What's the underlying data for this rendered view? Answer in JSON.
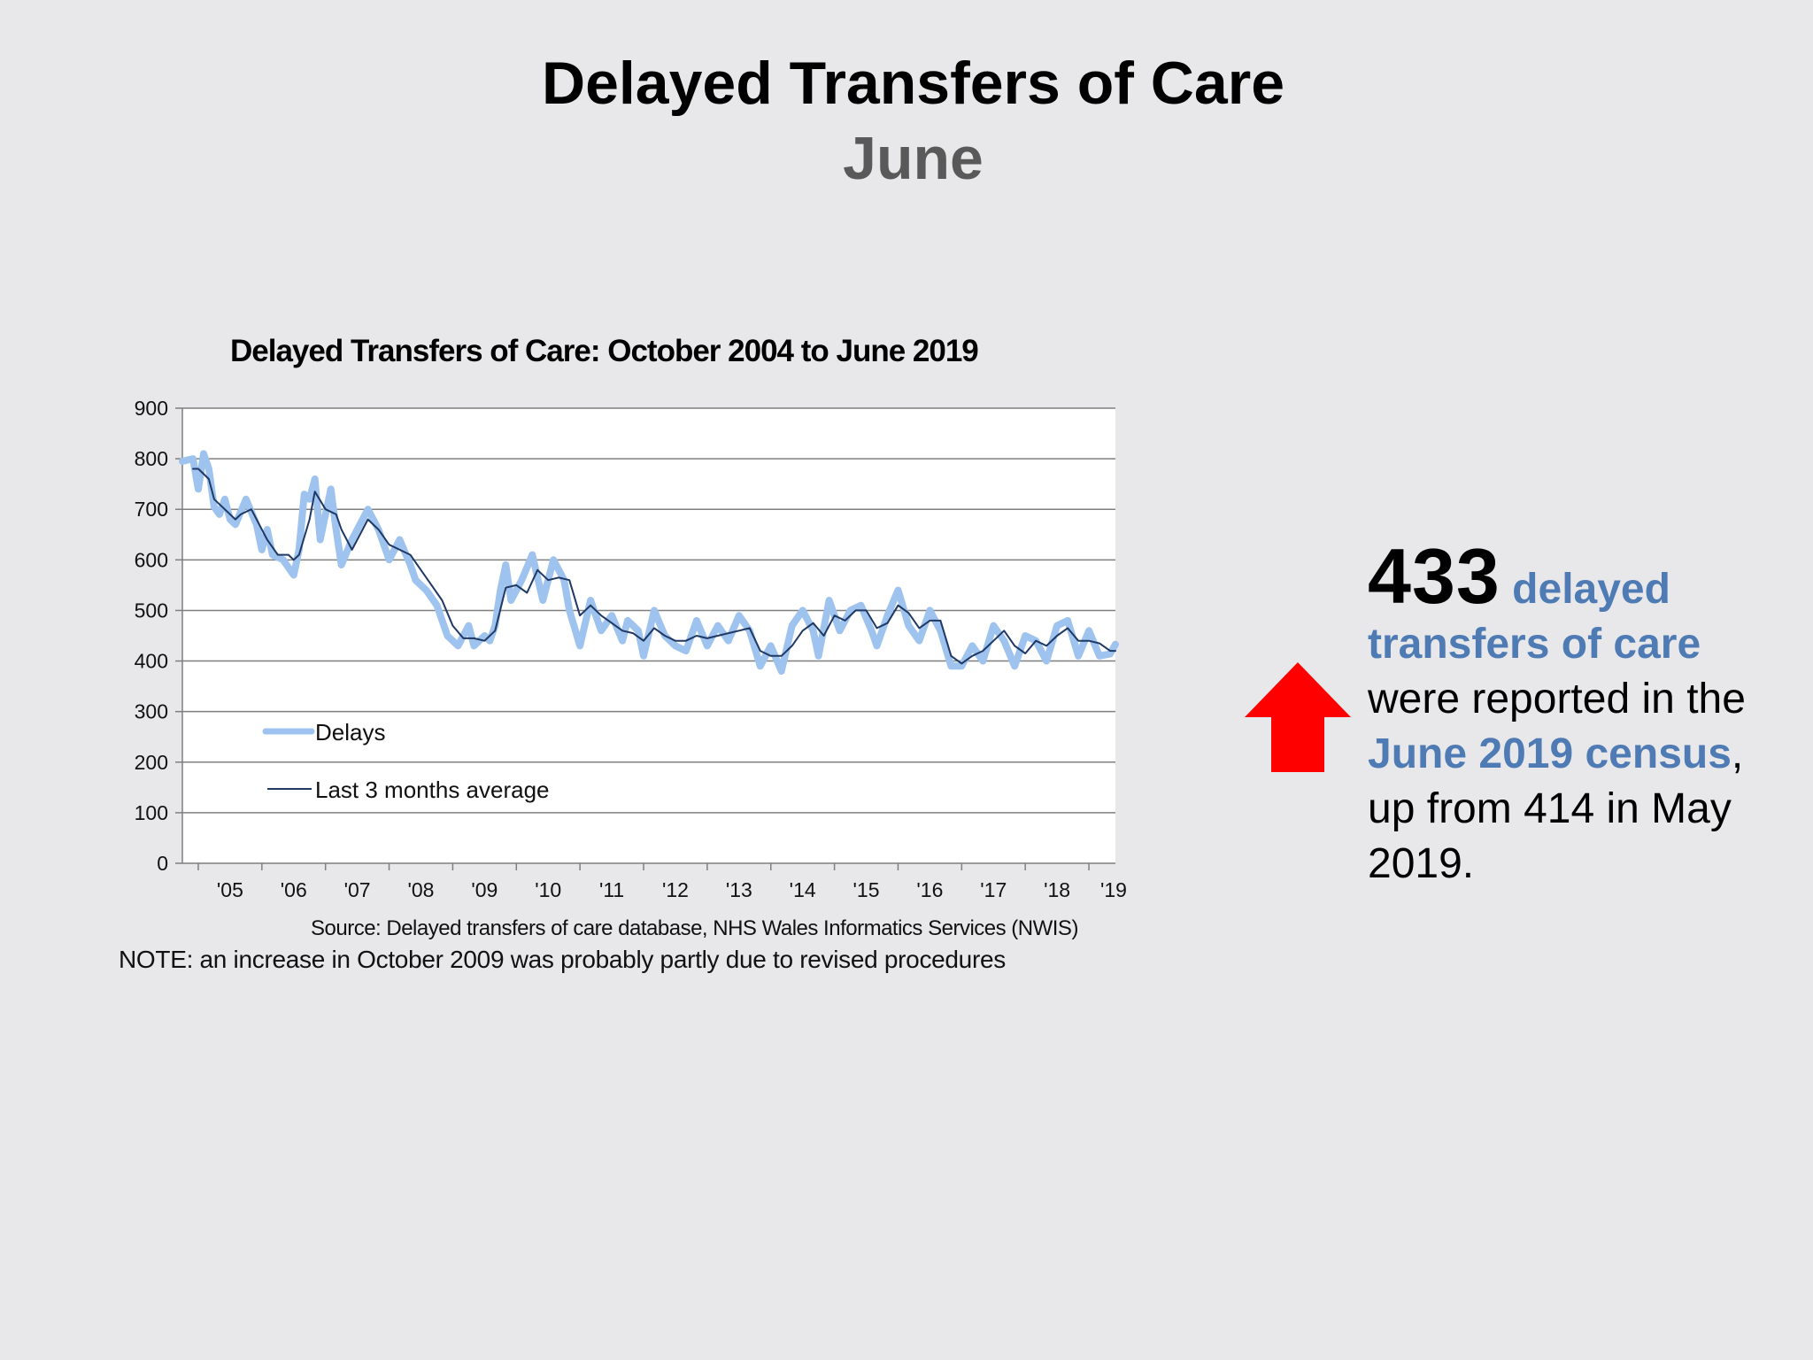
{
  "slide": {
    "title": "Delayed Transfers of Care",
    "subtitle": "June"
  },
  "callout": {
    "number": "433",
    "text_a": "delayed",
    "text_b": "transfers of care",
    "text_c": "were reported in the",
    "text_d": "June 2019 census",
    "text_e": ",",
    "text_f": "up from 414 in May 2019.",
    "arrow_icon": "up-arrow-icon",
    "arrow_color": "#ff0000",
    "highlight_color": "#4f7bb5"
  },
  "chart_data": {
    "type": "line",
    "title": "Delayed Transfers of Care: October 2004 to June 2019",
    "ylim": [
      0,
      900
    ],
    "yticks": [
      "0",
      "100",
      "200",
      "300",
      "400",
      "500",
      "600",
      "700",
      "800",
      "900"
    ],
    "xticks": [
      "'05",
      "'06",
      "'07",
      "'08",
      "'09",
      "'10",
      "'11",
      "'12",
      "'13",
      "'14",
      "'15",
      "'16",
      "'17",
      "'18",
      "'19"
    ],
    "grid": true,
    "legend_position": "lower-left",
    "source": "Source: Delayed transfers of care database, NHS Wales Informatics Services (NWIS)",
    "note": "NOTE: an increase in October 2009 was probably partly due to revised procedures",
    "x_start": "2004-10",
    "x_end": "2019-06",
    "series": [
      {
        "name": "Delays",
        "color": "#9ec3ee",
        "anchors": [
          [
            "2004-10",
            795
          ],
          [
            "2004-12",
            800
          ],
          [
            "2005-01",
            740
          ],
          [
            "2005-02",
            810
          ],
          [
            "2005-03",
            780
          ],
          [
            "2005-04",
            705
          ],
          [
            "2005-05",
            690
          ],
          [
            "2005-06",
            720
          ],
          [
            "2005-07",
            680
          ],
          [
            "2005-08",
            670
          ],
          [
            "2005-10",
            720
          ],
          [
            "2005-12",
            670
          ],
          [
            "2006-01",
            620
          ],
          [
            "2006-02",
            660
          ],
          [
            "2006-03",
            610
          ],
          [
            "2006-05",
            600
          ],
          [
            "2006-07",
            570
          ],
          [
            "2006-08",
            620
          ],
          [
            "2006-09",
            730
          ],
          [
            "2006-10",
            720
          ],
          [
            "2006-11",
            760
          ],
          [
            "2006-12",
            640
          ],
          [
            "2007-01",
            690
          ],
          [
            "2007-02",
            740
          ],
          [
            "2007-03",
            660
          ],
          [
            "2007-04",
            590
          ],
          [
            "2007-06",
            640
          ],
          [
            "2007-08",
            680
          ],
          [
            "2007-09",
            700
          ],
          [
            "2007-11",
            660
          ],
          [
            "2008-01",
            600
          ],
          [
            "2008-03",
            640
          ],
          [
            "2008-05",
            590
          ],
          [
            "2008-06",
            560
          ],
          [
            "2008-08",
            540
          ],
          [
            "2008-10",
            510
          ],
          [
            "2008-12",
            450
          ],
          [
            "2009-02",
            430
          ],
          [
            "2009-04",
            470
          ],
          [
            "2009-05",
            430
          ],
          [
            "2009-07",
            450
          ],
          [
            "2009-08",
            440
          ],
          [
            "2009-09",
            470
          ],
          [
            "2009-10",
            540
          ],
          [
            "2009-11",
            590
          ],
          [
            "2009-12",
            520
          ],
          [
            "2010-02",
            560
          ],
          [
            "2010-04",
            610
          ],
          [
            "2010-06",
            520
          ],
          [
            "2010-08",
            600
          ],
          [
            "2010-10",
            560
          ],
          [
            "2010-11",
            500
          ],
          [
            "2011-01",
            430
          ],
          [
            "2011-03",
            520
          ],
          [
            "2011-05",
            460
          ],
          [
            "2011-07",
            490
          ],
          [
            "2011-09",
            440
          ],
          [
            "2011-10",
            480
          ],
          [
            "2011-12",
            460
          ],
          [
            "2012-01",
            410
          ],
          [
            "2012-03",
            500
          ],
          [
            "2012-05",
            450
          ],
          [
            "2012-07",
            430
          ],
          [
            "2012-09",
            420
          ],
          [
            "2012-11",
            480
          ],
          [
            "2013-01",
            430
          ],
          [
            "2013-03",
            470
          ],
          [
            "2013-05",
            440
          ],
          [
            "2013-07",
            490
          ],
          [
            "2013-09",
            460
          ],
          [
            "2013-11",
            390
          ],
          [
            "2014-01",
            430
          ],
          [
            "2014-03",
            380
          ],
          [
            "2014-05",
            470
          ],
          [
            "2014-07",
            500
          ],
          [
            "2014-09",
            460
          ],
          [
            "2014-10",
            410
          ],
          [
            "2014-12",
            520
          ],
          [
            "2015-02",
            460
          ],
          [
            "2015-04",
            500
          ],
          [
            "2015-06",
            510
          ],
          [
            "2015-08",
            460
          ],
          [
            "2015-09",
            430
          ],
          [
            "2015-11",
            490
          ],
          [
            "2016-01",
            540
          ],
          [
            "2016-03",
            470
          ],
          [
            "2016-05",
            440
          ],
          [
            "2016-07",
            500
          ],
          [
            "2016-09",
            460
          ],
          [
            "2016-11",
            390
          ],
          [
            "2017-01",
            390
          ],
          [
            "2017-03",
            430
          ],
          [
            "2017-05",
            400
          ],
          [
            "2017-07",
            470
          ],
          [
            "2017-09",
            440
          ],
          [
            "2017-11",
            390
          ],
          [
            "2018-01",
            450
          ],
          [
            "2018-03",
            440
          ],
          [
            "2018-05",
            400
          ],
          [
            "2018-07",
            470
          ],
          [
            "2018-09",
            480
          ],
          [
            "2018-11",
            410
          ],
          [
            "2019-01",
            460
          ],
          [
            "2019-03",
            410
          ],
          [
            "2019-05",
            414
          ],
          [
            "2019-06",
            433
          ]
        ]
      },
      {
        "name": "Last 3 months average",
        "color": "#1f3864",
        "anchors": [
          [
            "2004-12",
            780
          ],
          [
            "2005-01",
            780
          ],
          [
            "2005-03",
            760
          ],
          [
            "2005-04",
            720
          ],
          [
            "2005-06",
            700
          ],
          [
            "2005-08",
            680
          ],
          [
            "2005-09",
            690
          ],
          [
            "2005-11",
            700
          ],
          [
            "2005-12",
            680
          ],
          [
            "2006-02",
            640
          ],
          [
            "2006-04",
            610
          ],
          [
            "2006-06",
            610
          ],
          [
            "2006-07",
            600
          ],
          [
            "2006-08",
            610
          ],
          [
            "2006-10",
            680
          ],
          [
            "2006-11",
            735
          ],
          [
            "2007-01",
            700
          ],
          [
            "2007-03",
            690
          ],
          [
            "2007-04",
            660
          ],
          [
            "2007-06",
            620
          ],
          [
            "2007-08",
            660
          ],
          [
            "2007-09",
            680
          ],
          [
            "2007-11",
            660
          ],
          [
            "2008-01",
            630
          ],
          [
            "2008-03",
            620
          ],
          [
            "2008-05",
            610
          ],
          [
            "2008-07",
            580
          ],
          [
            "2008-09",
            550
          ],
          [
            "2008-11",
            520
          ],
          [
            "2009-01",
            470
          ],
          [
            "2009-03",
            445
          ],
          [
            "2009-05",
            445
          ],
          [
            "2009-07",
            440
          ],
          [
            "2009-09",
            460
          ],
          [
            "2009-11",
            545
          ],
          [
            "2010-01",
            550
          ],
          [
            "2010-03",
            535
          ],
          [
            "2010-05",
            580
          ],
          [
            "2010-07",
            560
          ],
          [
            "2010-09",
            565
          ],
          [
            "2010-11",
            560
          ],
          [
            "2011-01",
            490
          ],
          [
            "2011-03",
            510
          ],
          [
            "2011-05",
            490
          ],
          [
            "2011-07",
            475
          ],
          [
            "2011-09",
            460
          ],
          [
            "2011-11",
            455
          ],
          [
            "2012-01",
            440
          ],
          [
            "2012-03",
            465
          ],
          [
            "2012-05",
            450
          ],
          [
            "2012-07",
            440
          ],
          [
            "2012-09",
            440
          ],
          [
            "2012-11",
            450
          ],
          [
            "2013-01",
            445
          ],
          [
            "2013-03",
            450
          ],
          [
            "2013-05",
            455
          ],
          [
            "2013-07",
            460
          ],
          [
            "2013-09",
            465
          ],
          [
            "2013-11",
            420
          ],
          [
            "2014-01",
            410
          ],
          [
            "2014-03",
            410
          ],
          [
            "2014-05",
            430
          ],
          [
            "2014-07",
            460
          ],
          [
            "2014-09",
            475
          ],
          [
            "2014-11",
            450
          ],
          [
            "2015-01",
            490
          ],
          [
            "2015-03",
            480
          ],
          [
            "2015-05",
            500
          ],
          [
            "2015-07",
            500
          ],
          [
            "2015-09",
            465
          ],
          [
            "2015-11",
            475
          ],
          [
            "2016-01",
            510
          ],
          [
            "2016-03",
            495
          ],
          [
            "2016-05",
            465
          ],
          [
            "2016-07",
            480
          ],
          [
            "2016-09",
            480
          ],
          [
            "2016-11",
            410
          ],
          [
            "2017-01",
            395
          ],
          [
            "2017-03",
            410
          ],
          [
            "2017-05",
            420
          ],
          [
            "2017-07",
            440
          ],
          [
            "2017-09",
            460
          ],
          [
            "2017-11",
            430
          ],
          [
            "2018-01",
            415
          ],
          [
            "2018-03",
            440
          ],
          [
            "2018-05",
            430
          ],
          [
            "2018-07",
            450
          ],
          [
            "2018-09",
            465
          ],
          [
            "2018-11",
            440
          ],
          [
            "2019-01",
            440
          ],
          [
            "2019-03",
            435
          ],
          [
            "2019-05",
            420
          ],
          [
            "2019-06",
            420
          ]
        ]
      }
    ]
  }
}
